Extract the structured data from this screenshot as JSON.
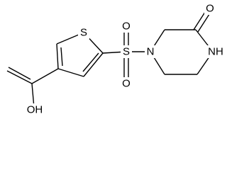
{
  "labels": {
    "thiophene_s": "S",
    "sulfonyl_s": "S",
    "sulfonyl_o_top": "O",
    "sulfonyl_o_bottom": "O",
    "n": "N",
    "nh": "NH",
    "ketone_o": "O",
    "acid_oh": "OH"
  }
}
